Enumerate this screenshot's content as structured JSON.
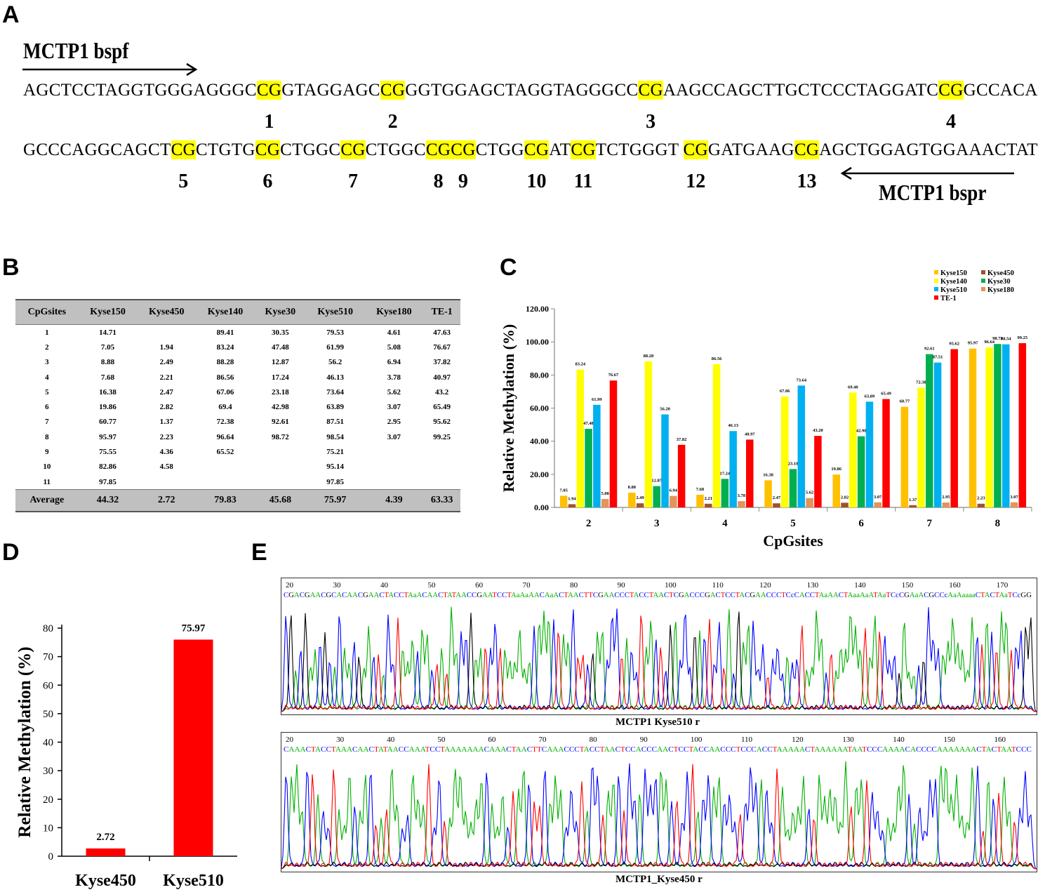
{
  "panels": {
    "a": "A",
    "b": "B",
    "c": "C",
    "d": "D",
    "e": "E"
  },
  "panel_a": {
    "forward_primer": "MCTP1  bspf",
    "reverse_primer": "MCTP1  bspr",
    "line1": [
      {
        "t": "AGCTCCTAGGTGGGAGGGC"
      },
      {
        "t": "CG",
        "cg": true
      },
      {
        "t": "GTAGGAGC"
      },
      {
        "t": "CG",
        "cg": true
      },
      {
        "t": "GGTGGAGCTAGGTAGGGCC"
      },
      {
        "t": "CG",
        "cg": true
      },
      {
        "t": "AAGCCAGCTTGCTCCCTAGGATC"
      },
      {
        "t": "CG",
        "cg": true
      },
      {
        "t": "GCCACAGTT"
      }
    ],
    "line2": [
      {
        "t": "GCCCAGGCAGCT"
      },
      {
        "t": "CG",
        "cg": true
      },
      {
        "t": "CTGTG"
      },
      {
        "t": "CG",
        "cg": true
      },
      {
        "t": "CTGGC"
      },
      {
        "t": "CG",
        "cg": true
      },
      {
        "t": "CTGGC"
      },
      {
        "t": "CGCG",
        "cg": true
      },
      {
        "t": "CTGG"
      },
      {
        "t": "CG",
        "cg": true
      },
      {
        "t": "AT"
      },
      {
        "t": "CG",
        "cg": true
      },
      {
        "t": "TCTGGGT "
      },
      {
        "t": "CG",
        "cg": true
      },
      {
        "t": "GATGAAG"
      },
      {
        "t": "CG",
        "cg": true
      },
      {
        "t": "AGCTGGAGTGGAAACTATGTG"
      }
    ],
    "cg_numbers_line1": [
      "1",
      "2",
      "3",
      "4"
    ],
    "cg_numbers_line2": [
      "5",
      "6",
      "7",
      "8",
      "9",
      "10",
      "11",
      "12",
      "13"
    ]
  },
  "table": {
    "headers": [
      "CpGsites",
      "Kyse150",
      "Kyse450",
      "Kyse140",
      "Kyse30",
      "Kyse510",
      "Kyse180",
      "TE-1"
    ],
    "rows": [
      [
        "1",
        "14.71",
        "",
        "89.41",
        "30.35",
        "79.53",
        "4.61",
        "47.63"
      ],
      [
        "2",
        "7.05",
        "1.94",
        "83.24",
        "47.48",
        "61.99",
        "5.08",
        "76.67"
      ],
      [
        "3",
        "8.88",
        "2.49",
        "88.28",
        "12.87",
        "56.2",
        "6.94",
        "37.82"
      ],
      [
        "4",
        "7.68",
        "2.21",
        "86.56",
        "17.24",
        "46.13",
        "3.78",
        "40.97"
      ],
      [
        "5",
        "16.38",
        "2.47",
        "67.06",
        "23.18",
        "73.64",
        "5.62",
        "43.2"
      ],
      [
        "6",
        "19.86",
        "2.82",
        "69.4",
        "42.98",
        "63.89",
        "3.07",
        "65.49"
      ],
      [
        "7",
        "60.77",
        "1.37",
        "72.38",
        "92.61",
        "87.51",
        "2.95",
        "95.62"
      ],
      [
        "8",
        "95.97",
        "2.23",
        "96.64",
        "98.72",
        "98.54",
        "3.07",
        "99.25"
      ],
      [
        "9",
        "75.55",
        "4.36",
        "65.52",
        "",
        "75.21",
        "",
        ""
      ],
      [
        "10",
        "82.86",
        "4.58",
        "",
        "",
        "95.14",
        "",
        ""
      ],
      [
        "11",
        "97.85",
        "",
        "",
        "",
        "97.85",
        "",
        ""
      ]
    ],
    "average": [
      "Average",
      "44.32",
      "2.72",
      "79.83",
      "45.68",
      "75.97",
      "4.39",
      "63.33"
    ]
  },
  "chart_data": [
    {
      "type": "bar",
      "xlabel": "CpGsites",
      "ylabel": "Relative Methylation (%)",
      "ylim": [
        0,
        120
      ],
      "yticks": [
        "0.00",
        "20.00",
        "40.00",
        "60.00",
        "80.00",
        "100.00",
        "120.00"
      ],
      "categories": [
        "2",
        "3",
        "4",
        "5",
        "6",
        "7",
        "8"
      ],
      "legend_position": "top-right",
      "series": [
        {
          "name": "Kyse150",
          "color": "#ffc000",
          "values": [
            7.05,
            8.88,
            7.68,
            16.38,
            19.86,
            60.77,
            95.97
          ],
          "labels": [
            "7.05",
            "8.88",
            "7.68",
            "16.38",
            "19.86",
            "60.77",
            "95.97"
          ]
        },
        {
          "name": "Kyse450",
          "color": "#a0522d",
          "values": [
            1.94,
            2.49,
            2.21,
            2.47,
            2.82,
            1.37,
            2.23
          ],
          "labels": [
            "1.94",
            "2.49",
            "2.21",
            "2.47",
            "2.82",
            "1.37",
            "2.23"
          ]
        },
        {
          "name": "Kyse140",
          "color": "#ffff00",
          "values": [
            83.24,
            88.28,
            86.56,
            67.06,
            69.4,
            72.38,
            96.64
          ],
          "labels": [
            "83.24",
            "88.28",
            "86.56",
            "67.06",
            "69.40",
            "72.38",
            "96.64"
          ]
        },
        {
          "name": "Kyse30",
          "color": "#00b050",
          "values": [
            47.48,
            12.87,
            17.24,
            23.18,
            42.98,
            92.61,
            98.72
          ],
          "labels": [
            "47.48",
            "12.87",
            "17.24",
            "23.18",
            "42.98",
            "92.61",
            "98.72"
          ]
        },
        {
          "name": "Kyse510",
          "color": "#00b0f0",
          "values": [
            61.99,
            56.2,
            46.13,
            73.64,
            63.89,
            87.51,
            98.54
          ],
          "labels": [
            "61.99",
            "56.20",
            "46.13",
            "73.64",
            "63.89",
            "87.51",
            "98.54"
          ]
        },
        {
          "name": "Kyse180",
          "color": "#e4935a",
          "values": [
            5.08,
            6.94,
            3.78,
            5.62,
            3.07,
            2.95,
            3.07
          ],
          "labels": [
            "5.08",
            "6.94",
            "3.78",
            "5.62",
            "3.07",
            "2.95",
            "3.07"
          ]
        },
        {
          "name": "TE-1",
          "color": "#ff0000",
          "values": [
            76.67,
            37.82,
            40.97,
            43.2,
            65.49,
            95.62,
            99.25
          ],
          "labels": [
            "76.67",
            "37.82",
            "40.97",
            "43.20",
            "65.49",
            "95.62",
            "99.25"
          ]
        }
      ]
    },
    {
      "type": "bar",
      "xlabel": "",
      "ylabel": "Relative Methylation (%)",
      "ylim": [
        0,
        80
      ],
      "yticks": [
        "0",
        "10",
        "20",
        "30",
        "40",
        "50",
        "60",
        "70",
        "80"
      ],
      "categories": [
        "Kyse450",
        "Kyse510"
      ],
      "values": [
        2.72,
        75.97
      ],
      "value_labels": [
        "2.72",
        "75.97"
      ],
      "color": "#ff0000"
    }
  ],
  "panel_e": {
    "trace1": {
      "caption": "MCTP1  Kyse510 r",
      "positions": [
        "20",
        "30",
        "40",
        "50",
        "60",
        "70",
        "80",
        "90",
        "100",
        "110",
        "120",
        "130",
        "140",
        "150",
        "160",
        "170"
      ],
      "sequence": "CGACGAACGCACAACGAACTACCTAaACAACTATAACCGAATCCTAaAaAACAaACTAACTTCGAACCCTACCTAACTCGACCCGACTCCTACGAACCCTCcCACCTAaAACTAaaAaATAaTCcCGAaACGCCcAaAaaaaCTACTAaTCcGG"
    },
    "trace2": {
      "caption": "MCTP1_Kyse450 r",
      "positions": [
        "20",
        "30",
        "40",
        "50",
        "60",
        "70",
        "80",
        "90",
        "100",
        "110",
        "120",
        "130",
        "140",
        "150",
        "160"
      ],
      "sequence": "CAAACTACCTAAACAACTATAACCAAATCCTAAAAAAACAAACTAACTTCAAACCCTACCTAACTCCACCCAACTCCTACCAACCCTCCCACCTAAAAACTAAAAAATAATCCCAAAACACCCCAAAAAAACTACTAATCCC"
    }
  }
}
